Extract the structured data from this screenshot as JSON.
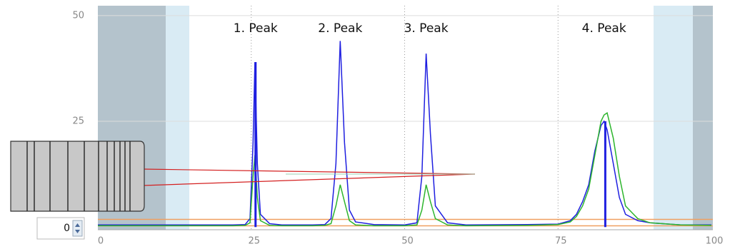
{
  "chart_data": {
    "type": "line",
    "x": [
      0,
      10,
      20,
      22,
      24,
      24.8,
      25.3,
      25.6,
      26,
      26.5,
      28,
      30,
      35,
      37,
      38,
      38.8,
      39.5,
      40.2,
      41,
      42,
      45,
      50,
      52,
      52.8,
      53.5,
      54.2,
      55,
      57,
      60,
      70,
      75,
      77,
      78,
      79,
      80,
      81,
      82,
      82.5,
      83,
      84,
      85,
      86,
      88,
      90,
      95,
      100
    ],
    "series": [
      {
        "color": "#1f1fe0",
        "values": [
          0.5,
          0.5,
          0.5,
          0.5,
          0.6,
          2,
          20,
          39,
          15,
          3,
          0.8,
          0.5,
          0.5,
          0.6,
          2,
          15,
          44,
          20,
          4,
          1.2,
          0.6,
          0.5,
          1,
          12,
          41,
          22,
          5,
          1,
          0.5,
          0.6,
          0.7,
          1.5,
          3,
          6,
          10,
          18,
          24,
          25,
          23,
          15,
          7,
          3,
          1.5,
          1,
          0.5,
          0.5
        ]
      },
      {
        "color": "#2db52d",
        "values": [
          0.3,
          0.3,
          0.3,
          0.3,
          0.4,
          1,
          12,
          17,
          7,
          1.5,
          0.4,
          0.3,
          0.3,
          0.4,
          0.8,
          5,
          10,
          6,
          1.5,
          0.5,
          0.3,
          0.3,
          0.5,
          4,
          10,
          6,
          2,
          0.5,
          0.3,
          0.4,
          0.6,
          1.2,
          2.5,
          5,
          9,
          17,
          25,
          26.5,
          27,
          21,
          12,
          5,
          2,
          1,
          0.5,
          0.4
        ]
      }
    ],
    "sticks": {
      "color": "#1f1fe0",
      "x": [
        25.7,
        82.7
      ],
      "values": [
        39,
        25
      ]
    },
    "thresholds": {
      "color": "#f0a060",
      "values": [
        1.8,
        0.3
      ]
    },
    "annotations": [
      {
        "text": "1. Peak",
        "x": 25.7
      },
      {
        "text": "2. Peak",
        "x": 39.5
      },
      {
        "text": "3. Peak",
        "x": 53.5
      },
      {
        "text": "4. Peak",
        "x": 82.5
      }
    ],
    "xlim": [
      0,
      100
    ],
    "xticks": [
      0,
      25,
      50,
      75,
      100
    ],
    "ylim": [
      -0.3,
      52
    ],
    "yticks": [
      25,
      50
    ],
    "grid": true
  },
  "spinner": {
    "value": "0"
  }
}
